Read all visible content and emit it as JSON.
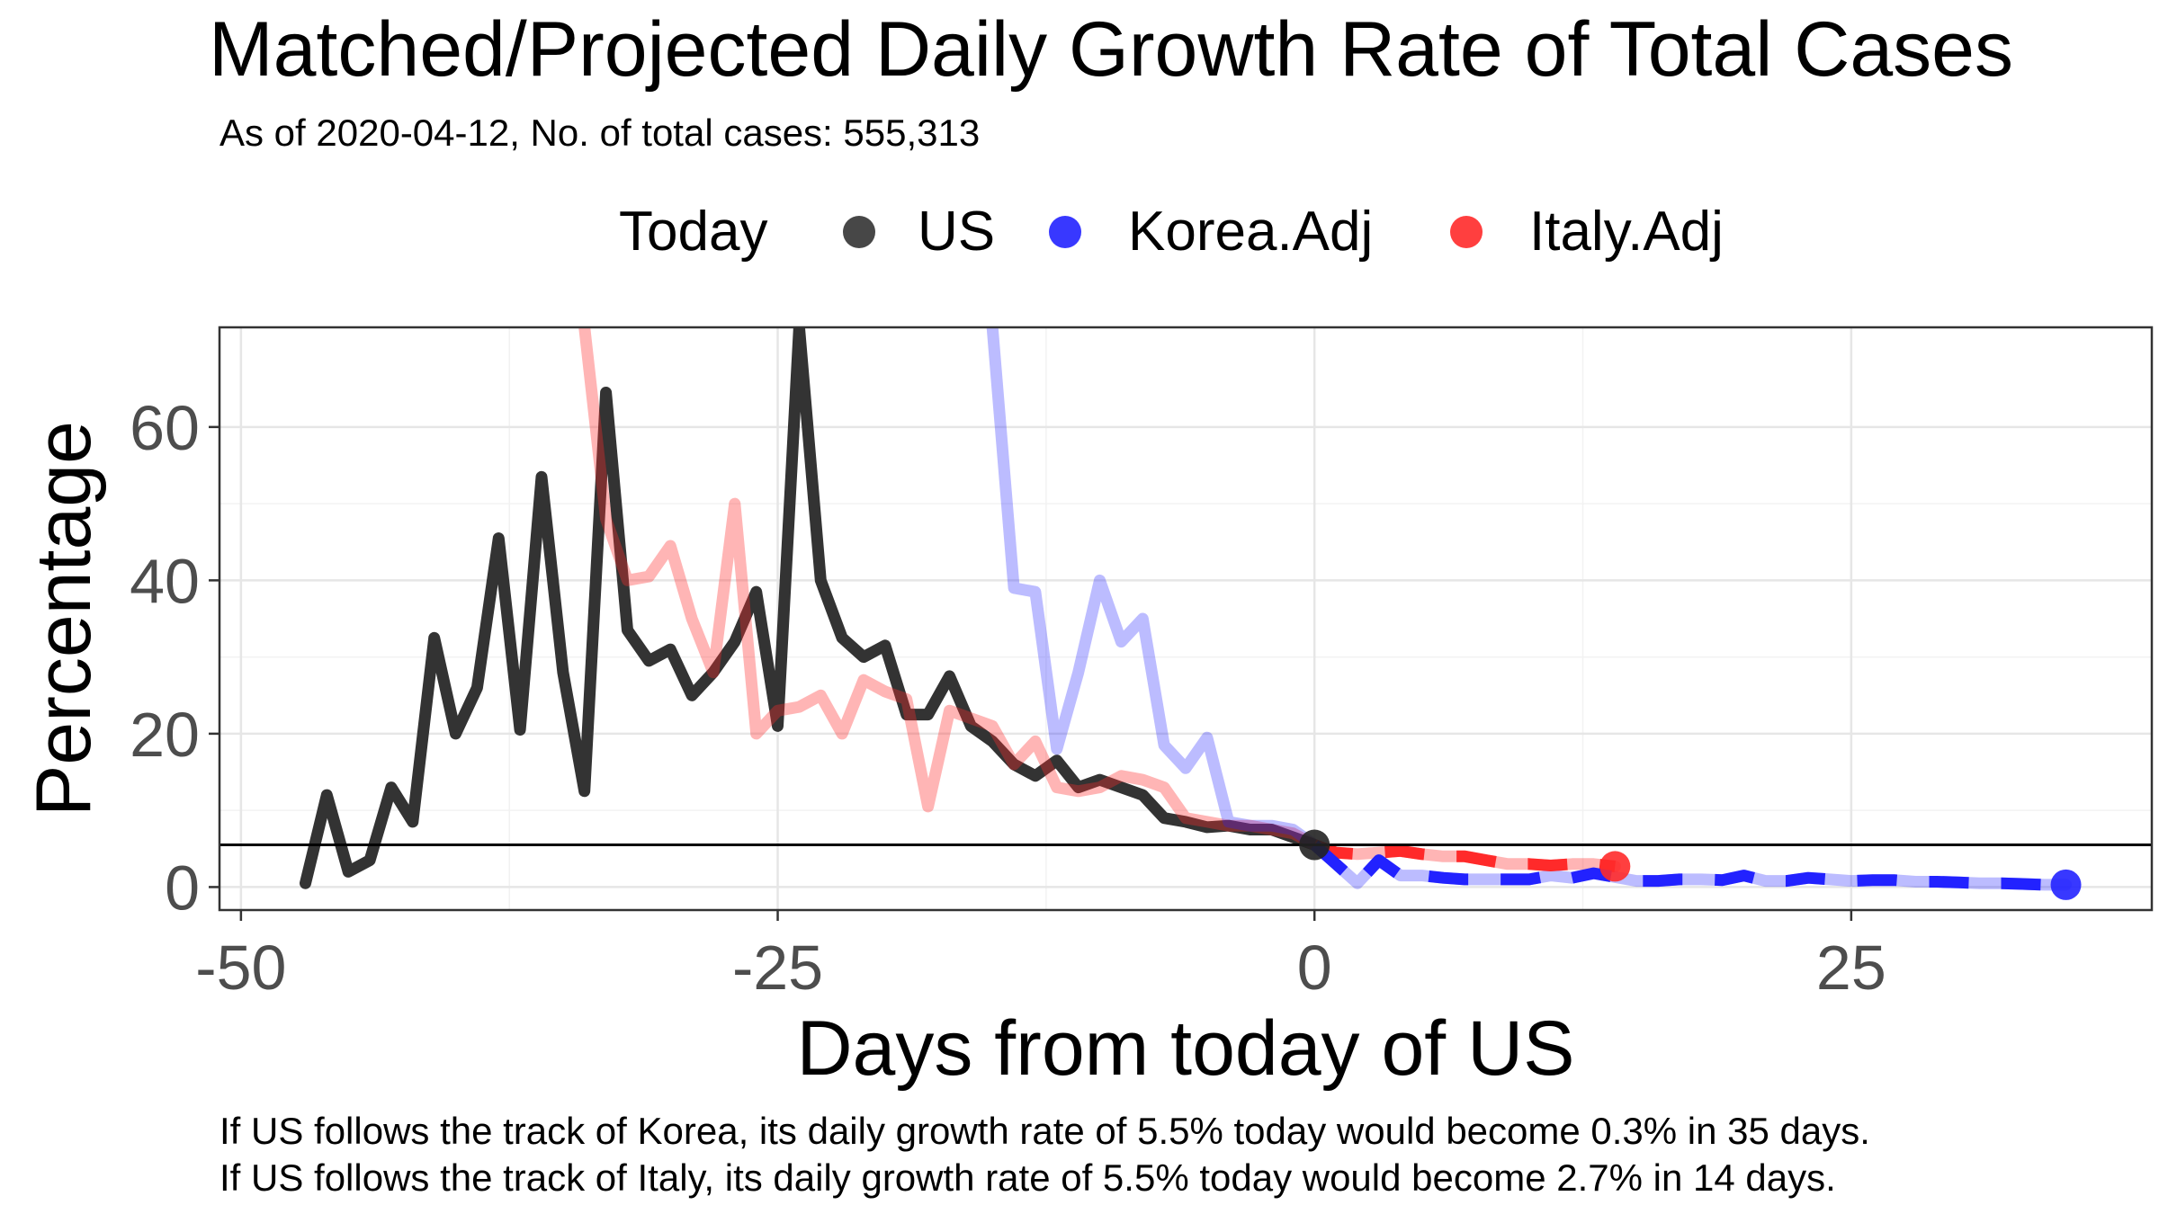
{
  "chart_data": {
    "type": "line",
    "title": "Matched/Projected Daily Growth Rate of Total Cases",
    "subtitle": "As of 2020-04-12, No. of total cases: 555,313",
    "xlabel": "Days from today of US",
    "ylabel": "Percentage",
    "xlim": [
      -51,
      39
    ],
    "ylim": [
      -3,
      73
    ],
    "grid": true,
    "legend": {
      "position": "top",
      "title": "Today",
      "entries": [
        {
          "label": "US",
          "color": "#333333"
        },
        {
          "label": "Korea.Adj",
          "color": "#2222ff"
        },
        {
          "label": "Italy.Adj",
          "color": "#ff2a2a"
        }
      ]
    },
    "x_ticks": [
      {
        "value": -50,
        "label": "-50"
      },
      {
        "value": -25,
        "label": "-25"
      },
      {
        "value": 0,
        "label": "0"
      },
      {
        "value": 25,
        "label": "25"
      }
    ],
    "y_ticks": [
      {
        "value": 0,
        "label": "0"
      },
      {
        "value": 20,
        "label": "20"
      },
      {
        "value": 40,
        "label": "40"
      },
      {
        "value": 60,
        "label": "60"
      }
    ],
    "reference_line": {
      "y": 5.5
    },
    "series": [
      {
        "name": "US",
        "color": "#333333",
        "opacity": 1,
        "x": [
          -47,
          -46,
          -45,
          -44,
          -43,
          -42,
          -41,
          -40,
          -39,
          -38,
          -37,
          -36,
          -35,
          -34,
          -33,
          -32,
          -31,
          -30,
          -29,
          -28,
          -27,
          -26,
          -25,
          -24,
          -23,
          -22,
          -21,
          -20,
          -19,
          -18,
          -17,
          -16,
          -15,
          -14,
          -13,
          -12,
          -11,
          -10,
          -9,
          -8,
          -7,
          -6,
          -5,
          -4,
          -3,
          -2,
          -1,
          0
        ],
        "values": [
          0.5,
          12,
          2,
          3.5,
          13,
          8.5,
          32.5,
          20,
          26,
          45.5,
          20.5,
          53.5,
          28,
          12.5,
          64.5,
          33.5,
          29.5,
          31,
          25,
          28,
          32,
          38.5,
          21,
          73,
          40,
          32.5,
          30,
          31.5,
          22.5,
          22.5,
          27.5,
          21,
          19,
          16,
          14.5,
          16.5,
          13,
          14,
          13,
          12,
          9,
          8.5,
          7.8,
          8,
          7.5,
          7.5,
          6.5,
          5.5
        ]
      },
      {
        "name": "Italy.Adj",
        "color": "#ff2a2a",
        "opacity": 0.35,
        "x": [
          -34,
          -33,
          -32,
          -31,
          -30,
          -29,
          -28,
          -27,
          -26,
          -25,
          -24,
          -23,
          -22,
          -21,
          -20,
          -19,
          -18,
          -17,
          -16,
          -15,
          -14,
          -13,
          -12,
          -11,
          -10,
          -9,
          -8,
          -7,
          -6,
          -5,
          -4,
          -3,
          -2,
          -1,
          0,
          1,
          2,
          3,
          4,
          5,
          6,
          7,
          8,
          9,
          10,
          11,
          12,
          13,
          14
        ],
        "values": [
          73,
          48,
          40,
          40.5,
          44.5,
          35,
          28,
          50,
          20,
          23,
          23.5,
          25,
          20,
          27,
          25.5,
          24.5,
          10.5,
          23,
          22,
          21,
          16,
          19,
          13,
          12.5,
          13,
          14.5,
          14,
          13,
          9,
          8.5,
          8,
          8,
          7.5,
          7,
          5.5,
          4.5,
          4.3,
          4.5,
          4.7,
          4.3,
          4,
          4,
          3.5,
          3,
          3,
          2.8,
          3,
          3,
          2.7
        ]
      },
      {
        "name": "Korea.Adj",
        "color": "#2222ff",
        "opacity": 0.3,
        "x": [
          -15,
          -14,
          -13,
          -12,
          -11,
          -10,
          -9,
          -8,
          -7,
          -6,
          -5,
          -4,
          -3,
          -2,
          -1,
          0,
          1,
          2,
          3,
          4,
          5,
          6,
          7,
          8,
          9,
          10,
          11,
          12,
          13,
          14,
          15,
          16,
          17,
          18,
          19,
          20,
          21,
          22,
          23,
          24,
          25,
          26,
          27,
          28,
          29,
          30,
          31,
          32,
          33,
          34,
          35
        ],
        "values": [
          73,
          39,
          38.5,
          18,
          28,
          40,
          32,
          35,
          18.5,
          15.5,
          19.5,
          8.5,
          8,
          8,
          7.5,
          5.5,
          3,
          0.5,
          3.5,
          1.5,
          1.5,
          1.2,
          1,
          1,
          1,
          1,
          1.5,
          1.2,
          1.8,
          1.3,
          0.8,
          0.8,
          1,
          1,
          0.9,
          1.5,
          0.8,
          0.8,
          1.2,
          1,
          0.8,
          0.9,
          0.9,
          0.7,
          0.7,
          0.6,
          0.5,
          0.5,
          0.4,
          0.3,
          0.3
        ]
      },
      {
        "name": "Italy.Adj projection",
        "color": "#ff2a2a",
        "opacity": 1,
        "dashed": true,
        "x": [
          0,
          1,
          2,
          3,
          4,
          5,
          6,
          7,
          8,
          9,
          10,
          11,
          12,
          13,
          14
        ],
        "values": [
          5.5,
          4.5,
          4.3,
          4.5,
          4.7,
          4.3,
          4,
          4,
          3.5,
          3,
          3,
          2.8,
          3,
          3,
          2.7
        ]
      },
      {
        "name": "Korea.Adj projection",
        "color": "#2222ff",
        "opacity": 1,
        "dashed": true,
        "x": [
          0,
          1,
          2,
          3,
          4,
          5,
          6,
          7,
          8,
          9,
          10,
          11,
          12,
          13,
          14,
          15,
          16,
          17,
          18,
          19,
          20,
          21,
          22,
          23,
          24,
          25,
          26,
          27,
          28,
          29,
          30,
          31,
          32,
          33,
          34,
          35
        ],
        "values": [
          5.5,
          3,
          0.5,
          3.5,
          1.5,
          1.5,
          1.2,
          1,
          1,
          1,
          1,
          1.5,
          1.2,
          1.8,
          1.3,
          0.8,
          0.8,
          1,
          1,
          0.9,
          1.5,
          0.8,
          0.8,
          1.2,
          1,
          0.8,
          0.9,
          0.9,
          0.7,
          0.7,
          0.6,
          0.5,
          0.5,
          0.4,
          0.3,
          0.3
        ]
      }
    ],
    "markers": [
      {
        "series": "Italy.Adj",
        "x": 14,
        "y": 2.7,
        "color": "#ff2a2a"
      },
      {
        "series": "Korea.Adj",
        "x": 35,
        "y": 0.3,
        "color": "#2222ff"
      },
      {
        "series": "US",
        "x": 0,
        "y": 5.5,
        "color": "#222222"
      }
    ],
    "footnotes": [
      "If US follows the track of Korea, its daily growth rate of 5.5% today would become 0.3% in 35 days.",
      "If US follows the track of Italy, its daily growth rate of 5.5% today would become 2.7% in 14 days."
    ]
  }
}
